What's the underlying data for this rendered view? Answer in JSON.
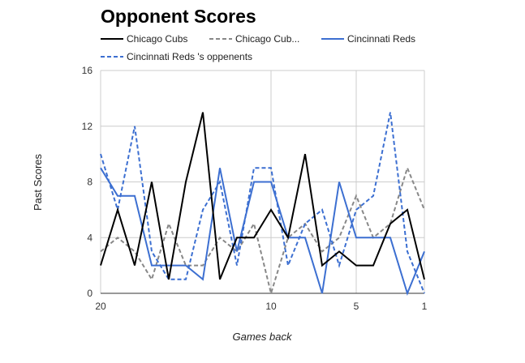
{
  "chart_data": {
    "type": "line",
    "title": "Opponent Scores",
    "xlabel": "Games back",
    "ylabel": "Past Scores",
    "x": [
      20,
      19,
      18,
      17,
      16,
      15,
      14,
      13,
      12,
      11,
      10,
      9,
      8,
      7,
      6,
      5,
      4,
      3,
      2,
      1
    ],
    "xlim": [
      20,
      1
    ],
    "ylim": [
      0,
      16
    ],
    "x_ticks": [
      20,
      10,
      5,
      1
    ],
    "y_ticks": [
      0,
      4,
      8,
      12,
      16
    ],
    "grid": true,
    "legend_position": "top",
    "series": [
      {
        "name": "Chicago Cubs",
        "legend_label": "Chicago Cubs",
        "color": "#000000",
        "dash": "solid",
        "values": [
          2,
          6,
          2,
          8,
          1,
          8,
          13,
          1,
          4,
          4,
          6,
          4,
          10,
          2,
          3,
          2,
          2,
          5,
          6,
          1
        ]
      },
      {
        "name": "Chicago Cubs 's oppenents",
        "legend_label": "Chicago Cub...",
        "color": "#888888",
        "dash": "dashed",
        "values": [
          3,
          4,
          3,
          1,
          5,
          2,
          2,
          4,
          3,
          5,
          0,
          4,
          5,
          3,
          4,
          7,
          4,
          5,
          9,
          6
        ]
      },
      {
        "name": "Cincinnati Reds",
        "legend_label": "Cincinnati Reds",
        "color": "#3c6fd1",
        "dash": "solid",
        "values": [
          9,
          7,
          7,
          2,
          2,
          2,
          1,
          9,
          3,
          8,
          8,
          4,
          4,
          0,
          8,
          4,
          4,
          4,
          0,
          3
        ]
      },
      {
        "name": "Cincinnati Reds 's oppenents",
        "legend_label": "Cincinnati Reds 's oppenents",
        "color": "#3c6fd1",
        "dash": "dashed",
        "values": [
          10,
          6,
          12,
          3,
          1,
          1,
          6,
          8,
          2,
          9,
          9,
          2,
          5,
          6,
          2,
          6,
          7,
          13,
          3,
          0
        ]
      }
    ]
  }
}
